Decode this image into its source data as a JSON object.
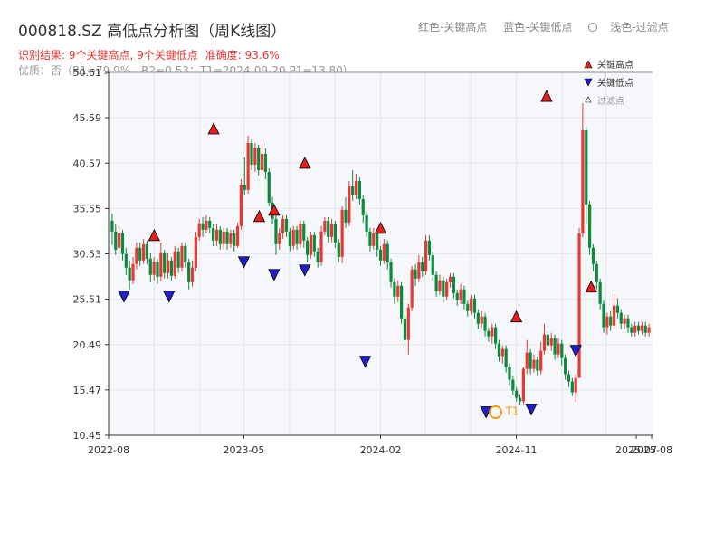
{
  "header": {
    "title": "000818.SZ 高低点分析图（周K线图）",
    "legend_red": "红色-关键高点",
    "legend_blue": "蓝色-关键低点",
    "legend_light": "浅色-过滤点",
    "result": "识别结果: 9个关键高点, 9个关键低点",
    "accuracy": "准确度: 93.6%",
    "quality": "优质：否（R1=79.9%，R2=0.53；T1=2024-09-20 P1=13.80）"
  },
  "chart_data": {
    "type": "candlestick",
    "ylim": [
      10.45,
      50.61
    ],
    "ytick_labels": [
      "10.45",
      "15.47",
      "20.49",
      "25.51",
      "30.53",
      "35.55",
      "40.57",
      "45.59",
      "50.61"
    ],
    "xtick_labels": [
      "2022-08",
      "2023-05",
      "2024-02",
      "2024-11",
      "2025-07",
      "2025-08"
    ],
    "xtick_dates": [
      "2022-08",
      "2023-05",
      "2024-02",
      "2024-11",
      "2025-07",
      "2025-08"
    ],
    "xrange": [
      "2022-08",
      "2025-08"
    ],
    "legend": {
      "high": "关键高点",
      "low": "关键低点",
      "filtered": "过滤点",
      "position": "top-right"
    },
    "colors": {
      "up": "#e53935",
      "down": "#0b8a3c",
      "high_marker": "#e32020",
      "low_marker": "#1f1fcc",
      "t1": "#f39c12"
    },
    "grid": true,
    "key_highs": [
      {
        "date": "2022-11",
        "value": 31.8
      },
      {
        "date": "2023-03",
        "value": 43.6
      },
      {
        "date": "2023-06",
        "value": 33.9
      },
      {
        "date": "2023-07",
        "value": 34.6
      },
      {
        "date": "2023-09",
        "value": 39.8
      },
      {
        "date": "2024-02",
        "value": 32.6
      },
      {
        "date": "2024-11",
        "value": 22.8
      },
      {
        "date": "2025-01",
        "value": 47.2
      },
      {
        "date": "2025-04",
        "value": 26.1
      }
    ],
    "key_lows": [
      {
        "date": "2022-09",
        "value": 26.6
      },
      {
        "date": "2022-12",
        "value": 26.6
      },
      {
        "date": "2023-05",
        "value": 30.4
      },
      {
        "date": "2023-07",
        "value": 29.0
      },
      {
        "date": "2023-09",
        "value": 29.5
      },
      {
        "date": "2024-01",
        "value": 19.4
      },
      {
        "date": "2024-09",
        "value": 13.8
      },
      {
        "date": "2024-12",
        "value": 14.1
      },
      {
        "date": "2025-03",
        "value": 20.6
      }
    ],
    "t1": {
      "label": "T1",
      "date": "2024-09-20",
      "value": 13.8
    },
    "candles": [
      [
        34.2,
        33.0,
        35.0,
        31.5
      ],
      [
        33.0,
        31.0,
        33.8,
        30.4
      ],
      [
        31.2,
        32.8,
        33.6,
        30.8
      ],
      [
        32.8,
        30.5,
        33.2,
        29.8
      ],
      [
        30.5,
        29.0,
        31.2,
        28.2
      ],
      [
        29.0,
        27.6,
        29.8,
        26.6
      ],
      [
        27.6,
        29.4,
        30.2,
        27.2
      ],
      [
        29.4,
        31.2,
        31.8,
        28.8
      ],
      [
        31.2,
        29.8,
        31.8,
        29.2
      ],
      [
        29.8,
        31.6,
        32.2,
        29.4
      ],
      [
        31.6,
        30.0,
        32.0,
        29.4
      ],
      [
        30.0,
        28.2,
        30.6,
        27.4
      ],
      [
        28.2,
        29.6,
        30.2,
        27.6
      ],
      [
        29.6,
        28.0,
        30.0,
        27.2
      ],
      [
        28.0,
        30.6,
        31.8,
        27.5
      ],
      [
        30.6,
        28.4,
        31.0,
        27.8
      ],
      [
        28.4,
        29.8,
        30.6,
        27.8
      ],
      [
        29.8,
        28.1,
        30.2,
        27.6
      ],
      [
        28.1,
        30.8,
        31.4,
        27.8
      ],
      [
        30.8,
        29.0,
        31.2,
        28.4
      ],
      [
        29.0,
        31.4,
        31.8,
        28.6
      ],
      [
        31.4,
        29.6,
        31.8,
        29.0
      ],
      [
        29.6,
        27.4,
        30.0,
        26.6
      ],
      [
        27.4,
        29.0,
        29.8,
        26.9
      ],
      [
        29.0,
        32.4,
        33.0,
        28.6
      ],
      [
        32.4,
        33.9,
        34.4,
        32.0
      ],
      [
        33.9,
        33.2,
        34.6,
        32.4
      ],
      [
        33.2,
        34.2,
        34.8,
        32.8
      ],
      [
        34.2,
        33.4,
        34.6,
        32.8
      ],
      [
        33.4,
        32.0,
        33.8,
        31.4
      ],
      [
        32.0,
        33.2,
        33.8,
        31.4
      ],
      [
        33.2,
        31.6,
        33.6,
        31.0
      ],
      [
        31.6,
        33.0,
        33.4,
        31.0
      ],
      [
        33.0,
        31.6,
        33.4,
        31.0
      ],
      [
        31.6,
        32.8,
        33.2,
        31.2
      ],
      [
        32.8,
        31.4,
        33.2,
        30.8
      ],
      [
        31.4,
        33.6,
        34.0,
        31.2
      ],
      [
        33.6,
        38.2,
        38.8,
        33.2
      ],
      [
        38.2,
        37.6,
        41.2,
        37.0
      ],
      [
        37.6,
        42.8,
        43.6,
        37.2
      ],
      [
        42.8,
        40.4,
        43.2,
        39.8
      ],
      [
        40.4,
        42.2,
        42.8,
        39.6
      ],
      [
        42.2,
        39.8,
        42.6,
        39.2
      ],
      [
        39.8,
        41.6,
        42.8,
        39.4
      ],
      [
        41.6,
        39.6,
        42.2,
        38.8
      ],
      [
        39.6,
        36.2,
        40.0,
        35.8
      ],
      [
        36.2,
        34.4,
        36.8,
        33.8
      ],
      [
        34.4,
        31.6,
        35.0,
        30.4
      ],
      [
        31.6,
        32.8,
        33.4,
        31.0
      ],
      [
        32.8,
        34.4,
        34.8,
        32.2
      ],
      [
        34.4,
        33.0,
        34.8,
        32.4
      ],
      [
        33.0,
        31.4,
        33.4,
        30.8
      ],
      [
        31.4,
        33.2,
        33.6,
        31.0
      ],
      [
        33.2,
        31.6,
        33.6,
        31.0
      ],
      [
        31.6,
        33.8,
        34.2,
        31.2
      ],
      [
        33.8,
        32.0,
        34.2,
        31.2
      ],
      [
        32.0,
        30.4,
        32.4,
        29.6
      ],
      [
        30.4,
        32.6,
        33.0,
        30.0
      ],
      [
        32.6,
        30.8,
        33.0,
        30.2
      ],
      [
        30.8,
        29.6,
        31.2,
        29.0
      ],
      [
        29.6,
        33.0,
        33.6,
        29.2
      ],
      [
        33.0,
        34.2,
        34.6,
        32.6
      ],
      [
        34.2,
        32.4,
        34.6,
        31.8
      ],
      [
        32.4,
        33.8,
        34.4,
        31.8
      ],
      [
        33.8,
        31.8,
        34.2,
        31.2
      ],
      [
        31.8,
        30.2,
        32.2,
        29.6
      ],
      [
        30.2,
        35.4,
        35.8,
        29.5
      ],
      [
        35.4,
        34.0,
        36.8,
        33.4
      ],
      [
        34.0,
        38.0,
        38.6,
        33.6
      ],
      [
        38.0,
        37.0,
        39.8,
        36.4
      ],
      [
        37.0,
        38.6,
        39.4,
        36.6
      ],
      [
        38.6,
        36.6,
        39.0,
        36.0
      ],
      [
        36.6,
        34.8,
        37.0,
        34.0
      ],
      [
        34.8,
        33.0,
        35.2,
        32.4
      ],
      [
        33.0,
        31.4,
        33.4,
        30.8
      ],
      [
        31.4,
        32.8,
        33.4,
        31.0
      ],
      [
        32.8,
        31.0,
        33.2,
        30.2
      ],
      [
        31.0,
        29.8,
        31.4,
        29.2
      ],
      [
        29.8,
        31.6,
        32.2,
        29.4
      ],
      [
        31.6,
        29.6,
        32.0,
        28.8
      ],
      [
        29.6,
        27.4,
        30.0,
        26.8
      ],
      [
        27.4,
        25.8,
        27.8,
        25.0
      ],
      [
        25.8,
        27.0,
        27.6,
        25.2
      ],
      [
        27.0,
        23.4,
        27.4,
        22.8
      ],
      [
        23.4,
        21.0,
        23.8,
        20.4
      ],
      [
        21.0,
        24.6,
        25.0,
        19.4
      ],
      [
        24.6,
        28.8,
        29.2,
        24.2
      ],
      [
        28.8,
        27.8,
        29.4,
        27.0
      ],
      [
        27.8,
        29.6,
        30.4,
        27.4
      ],
      [
        29.6,
        28.6,
        30.2,
        28.0
      ],
      [
        28.6,
        32.0,
        32.6,
        28.2
      ],
      [
        32.0,
        30.4,
        32.6,
        29.8
      ],
      [
        30.4,
        28.2,
        30.8,
        27.6
      ],
      [
        28.2,
        26.4,
        28.6,
        25.8
      ],
      [
        26.4,
        27.6,
        28.2,
        26.0
      ],
      [
        27.6,
        25.8,
        28.0,
        25.2
      ],
      [
        25.8,
        27.4,
        27.8,
        25.4
      ],
      [
        27.4,
        28.0,
        28.4,
        26.8
      ],
      [
        28.0,
        26.2,
        28.4,
        25.6
      ],
      [
        26.2,
        25.4,
        26.6,
        24.8
      ],
      [
        25.4,
        26.6,
        27.2,
        25.0
      ],
      [
        26.6,
        25.0,
        27.0,
        24.4
      ],
      [
        25.0,
        24.2,
        25.4,
        23.6
      ],
      [
        24.2,
        25.6,
        26.0,
        23.8
      ],
      [
        25.6,
        24.0,
        26.0,
        23.4
      ],
      [
        24.0,
        22.8,
        24.4,
        22.2
      ],
      [
        22.8,
        23.6,
        24.2,
        22.4
      ],
      [
        23.6,
        22.0,
        24.0,
        21.4
      ],
      [
        22.0,
        21.4,
        22.4,
        20.8
      ],
      [
        21.4,
        22.4,
        22.8,
        20.6
      ],
      [
        22.4,
        20.6,
        22.8,
        20.0
      ],
      [
        20.6,
        19.2,
        21.0,
        18.6
      ],
      [
        19.2,
        20.0,
        20.4,
        18.4
      ],
      [
        20.0,
        18.0,
        20.4,
        17.4
      ],
      [
        18.0,
        16.6,
        18.4,
        16.0
      ],
      [
        16.6,
        15.4,
        17.0,
        14.9
      ],
      [
        15.4,
        14.6,
        15.8,
        14.2
      ],
      [
        14.6,
        14.2,
        15.0,
        13.8
      ],
      [
        14.2,
        17.8,
        18.0,
        13.9
      ],
      [
        17.8,
        19.6,
        21.0,
        17.2
      ],
      [
        19.6,
        17.8,
        20.0,
        17.2
      ],
      [
        17.8,
        18.8,
        19.4,
        17.4
      ],
      [
        18.8,
        17.6,
        19.2,
        17.0
      ],
      [
        17.6,
        19.8,
        20.8,
        17.2
      ],
      [
        19.8,
        21.6,
        22.8,
        19.4
      ],
      [
        21.6,
        20.4,
        22.0,
        19.8
      ],
      [
        20.4,
        21.2,
        21.8,
        19.8
      ],
      [
        21.2,
        19.4,
        21.6,
        18.8
      ],
      [
        19.4,
        20.6,
        21.2,
        19.0
      ],
      [
        20.6,
        19.0,
        21.0,
        18.2
      ],
      [
        19.0,
        17.2,
        19.4,
        16.6
      ],
      [
        17.2,
        16.4,
        17.6,
        15.8
      ],
      [
        16.4,
        15.2,
        16.8,
        14.8
      ],
      [
        15.2,
        16.8,
        17.2,
        14.1
      ],
      [
        16.8,
        32.8,
        33.4,
        24.2
      ],
      [
        32.8,
        44.2,
        47.2,
        32.4
      ],
      [
        44.2,
        36.0,
        44.6,
        33.8
      ],
      [
        36.0,
        31.2,
        36.4,
        30.4
      ],
      [
        31.2,
        29.4,
        31.6,
        28.6
      ],
      [
        29.4,
        27.4,
        29.8,
        26.6
      ],
      [
        27.4,
        25.0,
        27.8,
        24.4
      ],
      [
        25.0,
        22.4,
        25.4,
        21.8
      ],
      [
        22.4,
        23.6,
        24.0,
        21.6
      ],
      [
        23.6,
        22.6,
        24.2,
        22.0
      ],
      [
        22.6,
        24.8,
        26.1,
        22.2
      ],
      [
        24.8,
        24.0,
        25.6,
        23.4
      ],
      [
        24.0,
        22.8,
        24.4,
        22.2
      ],
      [
        22.8,
        23.4,
        23.8,
        22.2
      ],
      [
        23.4,
        22.4,
        23.8,
        21.8
      ],
      [
        22.4,
        21.8,
        22.8,
        21.4
      ],
      [
        21.8,
        22.6,
        23.0,
        21.4
      ],
      [
        22.6,
        22.0,
        23.0,
        21.6
      ],
      [
        22.0,
        22.6,
        23.0,
        21.6
      ],
      [
        22.6,
        21.8,
        23.0,
        21.4
      ],
      [
        21.8,
        22.4,
        22.8,
        21.4
      ]
    ]
  }
}
